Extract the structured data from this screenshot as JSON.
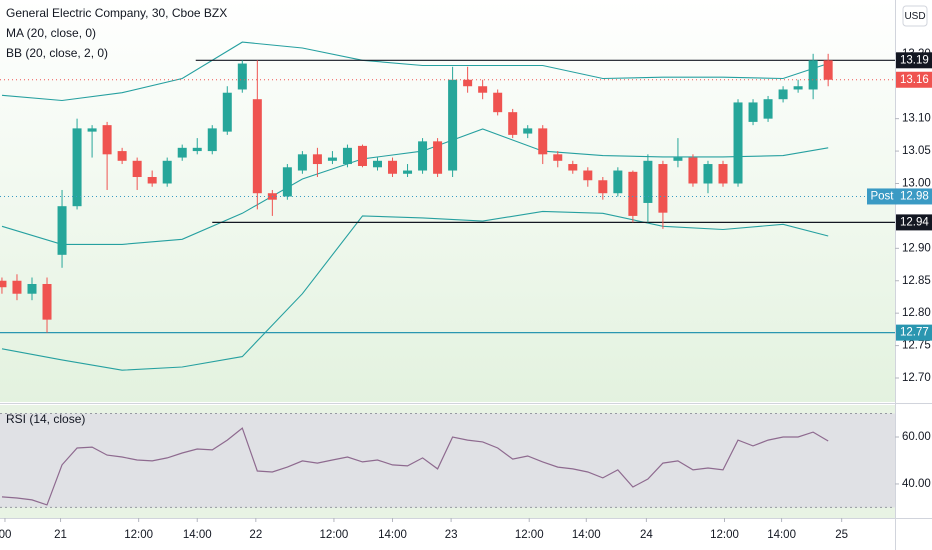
{
  "chart_data": {
    "type": "candlestick",
    "title": "General Electric Company, 30, Cboe BZX",
    "indicators": [
      "MA (20, close, 0)",
      "BB (20, close, 2, 0)"
    ],
    "currency": "USD",
    "x": [
      0,
      1,
      2,
      3,
      4,
      5,
      6,
      7,
      8,
      9,
      10,
      11,
      12,
      13,
      14,
      15,
      16,
      17,
      18,
      19,
      20,
      21,
      22,
      23,
      24,
      25,
      26,
      27,
      28,
      29,
      30,
      31,
      32,
      33,
      34,
      35,
      36,
      37,
      38,
      39,
      40,
      41,
      42,
      43,
      44,
      45,
      46,
      47,
      48,
      49,
      50,
      51,
      52,
      53,
      54,
      55
    ],
    "open": [
      12.85,
      12.85,
      12.83,
      12.845,
      12.89,
      12.965,
      13.08,
      13.09,
      13.05,
      13.035,
      13.01,
      13.0,
      13.04,
      13.05,
      13.05,
      13.08,
      13.145,
      13.13,
      12.985,
      12.98,
      13.02,
      13.045,
      13.035,
      13.03,
      13.058,
      13.025,
      13.035,
      13.015,
      13.02,
      13.065,
      13.02,
      13.16,
      13.15,
      13.14,
      13.11,
      13.077,
      13.085,
      13.045,
      13.03,
      13.02,
      13.005,
      12.985,
      13.018,
      12.97,
      13.03,
      13.035,
      13.04,
      13.0,
      13.03,
      13.0,
      13.095,
      13.1,
      13.13,
      13.145,
      13.145,
      13.19
    ],
    "high": [
      12.855,
      12.86,
      12.855,
      12.855,
      12.99,
      13.1,
      13.09,
      13.095,
      13.055,
      13.04,
      13.02,
      13.04,
      13.06,
      13.07,
      13.09,
      13.15,
      13.19,
      13.19,
      12.99,
      13.03,
      13.05,
      13.055,
      13.05,
      13.06,
      13.06,
      13.04,
      13.04,
      13.03,
      13.07,
      13.07,
      13.18,
      13.18,
      13.16,
      13.145,
      13.115,
      13.09,
      13.09,
      13.05,
      13.035,
      13.025,
      13.01,
      13.025,
      13.02,
      13.045,
      13.035,
      13.07,
      13.045,
      13.035,
      13.035,
      13.13,
      13.13,
      13.135,
      13.15,
      13.16,
      13.2,
      13.2
    ],
    "low": [
      12.83,
      12.82,
      12.82,
      12.77,
      12.87,
      12.96,
      13.04,
      12.99,
      13.03,
      12.99,
      12.995,
      12.995,
      13.035,
      13.045,
      13.045,
      13.075,
      13.14,
      12.96,
      12.95,
      12.975,
      13.015,
      13.01,
      13.03,
      13.025,
      13.025,
      13.02,
      13.01,
      13.01,
      13.015,
      13.01,
      13.01,
      13.14,
      13.13,
      13.105,
      13.07,
      13.07,
      13.03,
      13.025,
      13.015,
      12.995,
      12.975,
      12.98,
      12.94,
      12.94,
      12.93,
      13.025,
      12.995,
      12.985,
      12.995,
      12.995,
      13.09,
      13.095,
      13.125,
      13.14,
      13.13,
      13.15
    ],
    "close": [
      12.84,
      12.83,
      12.845,
      12.79,
      12.965,
      13.085,
      13.085,
      13.045,
      13.035,
      13.01,
      13.0,
      13.035,
      13.055,
      13.055,
      13.085,
      13.14,
      13.185,
      12.985,
      12.975,
      13.025,
      13.045,
      13.03,
      13.04,
      13.055,
      13.027,
      13.035,
      13.015,
      13.02,
      13.065,
      13.015,
      13.16,
      13.15,
      13.14,
      13.11,
      13.075,
      13.085,
      13.045,
      13.035,
      13.02,
      13.005,
      12.985,
      13.02,
      12.95,
      13.035,
      12.955,
      13.04,
      13.0,
      13.03,
      13.0,
      13.125,
      13.125,
      13.13,
      13.145,
      13.15,
      13.19,
      13.16
    ],
    "up_color": "#26a69a",
    "down_color": "#ef5350",
    "bands": {
      "color": "#26a0a0",
      "x": [
        0,
        4,
        8,
        12,
        16,
        20,
        24,
        28,
        32,
        36,
        40,
        44,
        48,
        52,
        55
      ],
      "upper": [
        13.136,
        13.128,
        13.14,
        13.162,
        13.218,
        13.209,
        13.19,
        13.182,
        13.182,
        13.182,
        13.162,
        13.164,
        13.164,
        13.162,
        13.185
      ],
      "basis": [
        12.934,
        12.906,
        12.906,
        12.914,
        12.954,
        13.007,
        13.038,
        13.05,
        13.084,
        13.05,
        13.043,
        13.041,
        13.041,
        13.043,
        13.055
      ],
      "lower": [
        12.745,
        12.728,
        12.712,
        12.717,
        12.733,
        12.83,
        12.95,
        12.947,
        12.942,
        12.957,
        12.954,
        12.934,
        12.929,
        12.937,
        12.919
      ]
    },
    "levels": [
      {
        "value": 13.19,
        "start": 12.9,
        "color": "#131722"
      },
      {
        "value": 12.94,
        "start": 14.0,
        "color": "#131722"
      },
      {
        "value": 12.77,
        "start": -0.13,
        "color": "#2a96b0"
      }
    ],
    "last_price": {
      "value": 13.16,
      "color": "#ef5350"
    },
    "post_price": {
      "value": 12.98,
      "label": "Post",
      "color": "#3a9ac4"
    },
    "xlim": [
      -0.13,
      59.45
    ],
    "ylim": [
      12.663,
      13.283
    ],
    "yticks": [
      {
        "value": 12.7,
        "label": "12.70"
      },
      12.75,
      {
        "value": 12.8,
        "label": "12.80"
      },
      12.85,
      {
        "value": 12.9,
        "label": "12.90"
      },
      {
        "value": 13,
        "label": "13.00"
      },
      13.05,
      {
        "value": 13.1,
        "label": "13.10"
      },
      {
        "value": 13.2,
        "label": "13.20"
      }
    ],
    "xticks": [
      {
        "value": 0.2,
        "label": "00"
      },
      {
        "value": 3.9,
        "label": "21"
      },
      {
        "value": 9.1,
        "label": "12:00"
      },
      {
        "value": 13,
        "label": "14:00"
      },
      {
        "value": 16.9,
        "label": "22"
      },
      {
        "value": 22.1,
        "label": "12:00"
      },
      {
        "value": 26,
        "label": "14:00"
      },
      {
        "value": 29.9,
        "label": "23"
      },
      {
        "value": 35.1,
        "label": "12:00"
      },
      {
        "value": 38.9,
        "label": "14:00"
      },
      {
        "value": 42.9,
        "label": "24"
      },
      {
        "value": 48.1,
        "label": "12:00"
      },
      {
        "value": 51.9,
        "label": "14:00"
      },
      {
        "value": 55.9,
        "label": "25"
      }
    ],
    "rsi": {
      "title": "RSI (14, close)",
      "color": "#8e6a8f",
      "values": [
        34.5,
        34.0,
        33.2,
        31.1,
        48.1,
        55.3,
        55.7,
        52.3,
        51.5,
        50.2,
        49.8,
        51.1,
        53.2,
        54.9,
        54.5,
        58.7,
        63.8,
        45.5,
        45.1,
        47.2,
        49.8,
        48.9,
        50.2,
        51.5,
        49.4,
        50.2,
        48.1,
        47.7,
        51.1,
        46.4,
        60.0,
        58.7,
        57.9,
        55.3,
        50.6,
        51.9,
        49.4,
        47.2,
        46.4,
        45.1,
        42.6,
        46.0,
        38.7,
        42.1,
        48.9,
        49.8,
        46.0,
        46.8,
        46.0,
        58.7,
        56.2,
        58.7,
        60.0,
        60.0,
        62.1,
        58.3
      ],
      "ylim": [
        25.5,
        71.5
      ],
      "band": [
        30,
        70
      ],
      "yticks": [
        {
          "value": 40,
          "label": "40.00"
        },
        {
          "value": 60,
          "label": "60.00"
        }
      ]
    }
  }
}
